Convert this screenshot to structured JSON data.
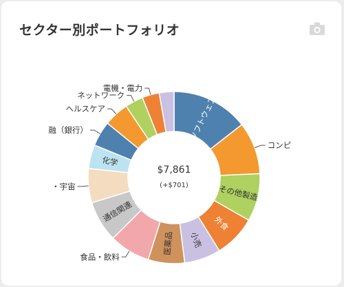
{
  "card": {
    "title": "セクター別ポートフォリオ",
    "camera_icon": "camera-icon"
  },
  "chart_data": {
    "type": "pie",
    "style": "donut",
    "center": {
      "total": "$7,861",
      "diff": "(+$701)"
    },
    "slices": [
      {
        "label": "ソフトウェア",
        "value": 13.5,
        "color": "#4f81af",
        "label_inside": true,
        "light": true
      },
      {
        "label": "コンピ",
        "value": 9.2,
        "color": "#f3992f",
        "label_inside": false
      },
      {
        "label": "その他製造",
        "value": 8.4,
        "color": "#aed15f",
        "label_inside": true
      },
      {
        "label": "外食",
        "value": 7.4,
        "color": "#ee8134",
        "label_inside": true,
        "light": true
      },
      {
        "label": "小売",
        "value": 6.4,
        "color": "#c9c0e2",
        "label_inside": true
      },
      {
        "label": "医薬品",
        "value": 6.4,
        "color": "#cf925d",
        "label_inside": true
      },
      {
        "label": "食品・飲料",
        "value": 7.2,
        "color": "#f2a8ab",
        "label_inside": false
      },
      {
        "label": "通信関連",
        "value": 7.2,
        "color": "#c8c8c8",
        "label_inside": true
      },
      {
        "label": "・宇宙",
        "value": 6.0,
        "color": "#f3dcbf",
        "label_inside": false
      },
      {
        "label": "化学",
        "value": 4.2,
        "color": "#bde3f1",
        "label_inside": true
      },
      {
        "label": "融（銀行）",
        "value": 4.4,
        "color": "#4f81af",
        "label_inside": false
      },
      {
        "label": "ヘルスケア",
        "value": 4.4,
        "color": "#f3992f",
        "label_inside": false
      },
      {
        "label": "ネットワーク",
        "value": 3.2,
        "color": "#aed15f",
        "label_inside": false
      },
      {
        "label": "電機・電力",
        "value": 3.0,
        "color": "#ee8134",
        "label_inside": false
      },
      {
        "label": "",
        "value": 2.6,
        "color": "#c9c0e2",
        "label_inside": false
      }
    ]
  }
}
